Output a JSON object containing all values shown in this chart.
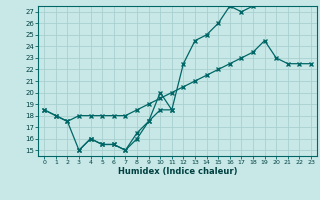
{
  "xlabel": "Humidex (Indice chaleur)",
  "bg_color": "#c8e8e8",
  "grid_color": "#a8d0d0",
  "line_color": "#006666",
  "xlim": [
    -0.5,
    23.5
  ],
  "ylim": [
    14.5,
    27.5
  ],
  "xticks": [
    0,
    1,
    2,
    3,
    4,
    5,
    6,
    7,
    8,
    9,
    10,
    11,
    12,
    13,
    14,
    15,
    16,
    17,
    18,
    19,
    20,
    21,
    22,
    23
  ],
  "yticks": [
    15,
    16,
    17,
    18,
    19,
    20,
    21,
    22,
    23,
    24,
    25,
    26,
    27
  ],
  "line1_x": [
    0,
    1,
    2,
    3,
    4,
    5,
    6,
    7,
    8,
    9,
    10,
    11
  ],
  "line1_y": [
    18.5,
    18.0,
    17.5,
    15.0,
    16.0,
    15.5,
    15.5,
    15.0,
    16.0,
    17.5,
    18.5,
    18.5
  ],
  "line2_x": [
    3,
    4,
    5,
    6,
    7,
    8,
    9,
    10,
    11,
    12,
    13,
    14,
    15,
    16,
    17,
    18
  ],
  "line2_y": [
    15.0,
    16.0,
    15.5,
    15.5,
    15.0,
    16.5,
    17.5,
    20.0,
    18.5,
    22.5,
    24.5,
    25.0,
    26.0,
    27.5,
    27.0,
    27.5
  ],
  "line3_x": [
    0,
    1,
    2,
    3,
    4,
    5,
    6,
    7,
    8,
    9,
    10,
    11,
    12,
    13,
    14,
    15,
    16,
    17,
    18,
    19,
    20,
    21,
    22,
    23
  ],
  "line3_y": [
    18.5,
    18.0,
    17.5,
    18.0,
    18.0,
    18.0,
    18.0,
    18.0,
    18.5,
    19.0,
    19.5,
    20.0,
    20.5,
    21.0,
    21.5,
    22.0,
    22.5,
    23.0,
    23.5,
    24.5,
    23.0,
    22.5,
    22.5,
    22.5
  ]
}
